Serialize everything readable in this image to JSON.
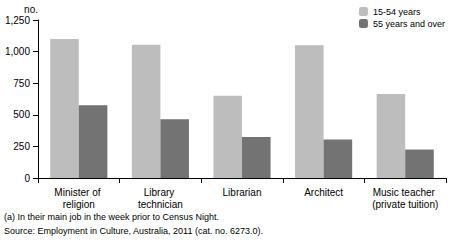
{
  "chart_data": {
    "type": "bar",
    "ylabel": "no.",
    "categories": [
      "Minister of religion",
      "Library technician",
      "Librarian",
      "Architect",
      "Music teacher (private tuition)"
    ],
    "series": [
      {
        "name": "15-54 years",
        "color": "#bdbdbd",
        "values": [
          1100,
          1055,
          650,
          1050,
          665
        ]
      },
      {
        "name": "55 years and over",
        "color": "#737373",
        "values": [
          575,
          465,
          325,
          305,
          225
        ]
      }
    ],
    "ylim": [
      0,
      1250
    ],
    "yticks": [
      0,
      250,
      500,
      750,
      1000,
      1250
    ],
    "grid": false,
    "legend": "top-right",
    "annotations": [
      "(a) In their main job in the week prior to Census Night.",
      "Source: Employment in Culture, Australia, 2011 (cat. no. 6273.0)."
    ]
  }
}
